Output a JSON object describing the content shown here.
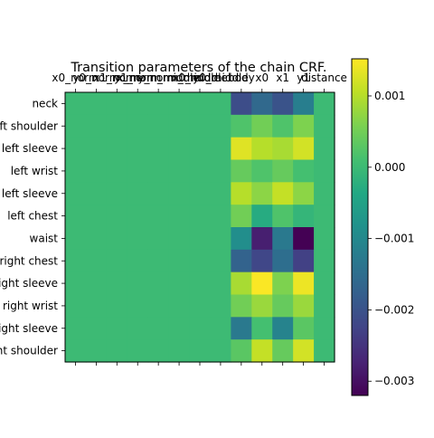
{
  "chart_data": {
    "type": "heatmap",
    "title": "Transition parameters of the chain CRF.",
    "x_labels": [
      "x0_norm",
      "y0_norm",
      "x1_norm",
      "y1_norm",
      "x_norm_middle",
      "y_norm_middle",
      "x0_middle",
      "y0_middle",
      "body",
      "x0",
      "x1",
      "y1",
      "distance"
    ],
    "y_labels": [
      "neck",
      "left shoulder",
      "outer left sleeve",
      "left wrist",
      "inner left sleeve",
      "left chest",
      "waist",
      "right chest",
      "inner right sleeve",
      "right wrist",
      "outer right sleeve",
      "right shoulder"
    ],
    "values": [
      [
        0,
        0,
        0,
        0,
        0,
        0,
        0,
        0,
        -0.0021,
        -0.0016,
        -0.002,
        -0.0012,
        0
      ],
      [
        0,
        0,
        0,
        0,
        0,
        0,
        0,
        0,
        0.0002,
        0.0005,
        0.0002,
        0.0006,
        0
      ],
      [
        0,
        0,
        0,
        0,
        0,
        0,
        0,
        0,
        0.0013,
        0.001,
        0.0009,
        0.0012,
        0
      ],
      [
        0,
        0,
        0,
        0,
        0,
        0,
        0,
        0,
        0.0004,
        0.0002,
        0.0004,
        0.0001,
        0
      ],
      [
        0,
        0,
        0,
        0,
        0,
        0,
        0,
        0,
        0.001,
        0.0007,
        0.0011,
        0.0007,
        0
      ],
      [
        0,
        0,
        0,
        0,
        0,
        0,
        0,
        0,
        0.0005,
        -0.0003,
        0.0002,
        -0.0001,
        0
      ],
      [
        0,
        0,
        0,
        0,
        0,
        0,
        0,
        0,
        -0.0009,
        -0.0028,
        -0.0013,
        -0.0032,
        0
      ],
      [
        0,
        0,
        0,
        0,
        0,
        0,
        0,
        0,
        -0.0017,
        -0.0022,
        -0.0015,
        -0.0023,
        0
      ],
      [
        0,
        0,
        0,
        0,
        0,
        0,
        0,
        0,
        0.0009,
        0.0015,
        0.0006,
        0.0014,
        0
      ],
      [
        0,
        0,
        0,
        0,
        0,
        0,
        0,
        0,
        0.0005,
        0.0008,
        0.0004,
        0.0008,
        0
      ],
      [
        0,
        0,
        0,
        0,
        0,
        0,
        0,
        0,
        -0.0013,
        0.0001,
        -0.0011,
        0.0003,
        0
      ],
      [
        0,
        0,
        0,
        0,
        0,
        0,
        0,
        0,
        0.0003,
        0.0011,
        0.0004,
        0.0012,
        0
      ]
    ],
    "vmin": -0.0032,
    "vmax": 0.00152,
    "colormap": "viridis",
    "colorbar_ticks": [
      0.001,
      0.0,
      -0.001,
      -0.002,
      -0.003
    ],
    "colorbar_tick_labels": [
      "0.001",
      "0.000",
      "−0.001",
      "−0.002",
      "−0.003"
    ],
    "legend": "colorbar-right"
  }
}
